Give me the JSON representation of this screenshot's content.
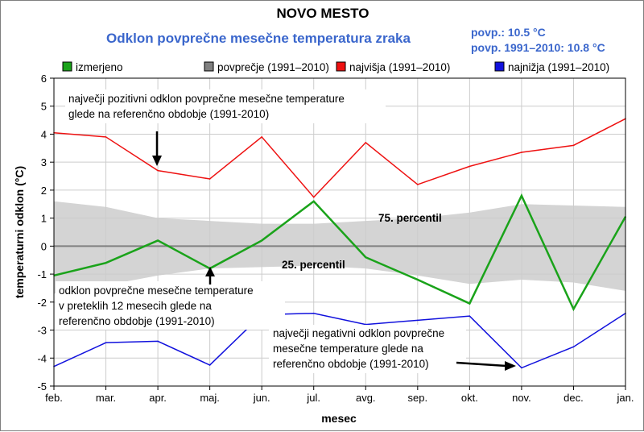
{
  "chart_data": {
    "type": "line",
    "title": "NOVO MESTO",
    "subtitle": "Odklon povprečne mesečne temperatura zraka",
    "info": [
      "povp.: 10.5 °C",
      "povp. 1991–2010: 10.8 °C"
    ],
    "xlabel": "mesec",
    "ylabel": "temperaturni odklon (°C)",
    "categories": [
      "feb.",
      "mar.",
      "apr.",
      "maj.",
      "jun.",
      "jul.",
      "avg.",
      "sep.",
      "okt.",
      "nov.",
      "dec.",
      "jan."
    ],
    "ylim": [
      -5,
      6
    ],
    "yticks": [
      -5,
      -4,
      -3,
      -2,
      -1,
      0,
      1,
      2,
      3,
      4,
      5,
      6
    ],
    "grid": true,
    "legend_position": "top",
    "series": [
      {
        "name": "izmerjeno",
        "color": "#1aa31a",
        "values": [
          -1.05,
          -0.6,
          0.2,
          -0.8,
          0.2,
          1.6,
          -0.4,
          -1.2,
          -2.05,
          1.8,
          -2.25,
          1.05
        ]
      },
      {
        "name": "povprečje (1991–2010)",
        "color": "#808080",
        "values": [
          0,
          0,
          0,
          0,
          0,
          0,
          0,
          0,
          0,
          0,
          0,
          0
        ]
      },
      {
        "name": "najvišja (1991–2010)",
        "color": "#ee1111",
        "values": [
          4.05,
          3.9,
          2.7,
          2.4,
          3.9,
          1.75,
          3.7,
          2.2,
          2.85,
          3.35,
          3.6,
          4.55
        ]
      },
      {
        "name": "najnižja (1991–2010)",
        "color": "#1111dd",
        "values": [
          -4.3,
          -3.45,
          -3.4,
          -4.25,
          -2.45,
          -2.4,
          -2.8,
          -2.65,
          -2.5,
          -4.35,
          -3.6,
          -2.4
        ]
      }
    ],
    "band": {
      "color": "#d4d4d4",
      "upper": [
        1.6,
        1.4,
        1.0,
        0.9,
        0.8,
        0.8,
        0.9,
        1.0,
        1.2,
        1.5,
        1.45,
        1.4
      ],
      "lower": [
        -1.7,
        -1.4,
        -1.05,
        -0.8,
        -0.75,
        -0.7,
        -0.8,
        -1.05,
        -1.35,
        -1.2,
        -1.3,
        -1.6
      ],
      "upper_label": "75. percentil",
      "lower_label": "25. percentil"
    },
    "annotations": [
      {
        "lines": [
          "največji pozitivni odklon povprečne mesečne temperature",
          "glede na referenčno obdobje (1991-2010)"
        ]
      },
      {
        "lines": [
          "odklon povprečne mesečne temperature",
          "v preteklih 12 mesecih glede na",
          "referenčno obdobje (1991-2010)"
        ]
      },
      {
        "lines": [
          "največji negativni odklon povprečne",
          "mesečne temperature glede na",
          "referenčno obdobje (1991-2010)"
        ]
      }
    ]
  }
}
